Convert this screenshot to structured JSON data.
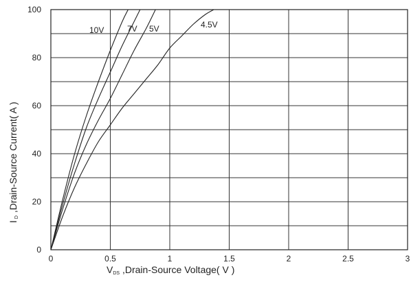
{
  "chart_data": {
    "type": "line",
    "xlabel_main": "V",
    "xlabel_sub": "DS",
    "xlabel_rest": " ,Drain-Source Voltage( V )",
    "ylabel_main": "I",
    "ylabel_sub": "D",
    "ylabel_rest": " ,Drain-Source Current( A )",
    "xlim": [
      0,
      3
    ],
    "ylim": [
      0,
      100
    ],
    "x_ticks": [
      0,
      0.5,
      1,
      1.5,
      2,
      2.5,
      3
    ],
    "x_tick_labels": [
      "0",
      "0.5",
      "1",
      "1.5",
      "2",
      "2.5",
      "3"
    ],
    "y_ticks": [
      0,
      20,
      40,
      60,
      80,
      100
    ],
    "y_tick_labels": [
      "0",
      "20",
      "40",
      "60",
      "80",
      "100"
    ],
    "grid": true,
    "series": [
      {
        "name": "10V",
        "x": [
          0,
          0.1,
          0.2,
          0.3,
          0.4,
          0.5,
          0.6,
          0.65
        ],
        "y": [
          0,
          21,
          40,
          56,
          70,
          83,
          95,
          100
        ]
      },
      {
        "name": "7V",
        "x": [
          0,
          0.1,
          0.2,
          0.3,
          0.4,
          0.5,
          0.6,
          0.7,
          0.75
        ],
        "y": [
          0,
          19,
          36,
          51,
          63,
          74,
          85,
          95,
          100
        ]
      },
      {
        "name": "5V",
        "x": [
          0,
          0.1,
          0.2,
          0.3,
          0.4,
          0.5,
          0.6,
          0.7,
          0.8,
          0.88
        ],
        "y": [
          0,
          17,
          32,
          44,
          54,
          63,
          73,
          83,
          92,
          100
        ]
      },
      {
        "name": "4.5V",
        "x": [
          0,
          0.1,
          0.2,
          0.3,
          0.4,
          0.5,
          0.6,
          0.7,
          0.8,
          0.9,
          1.0,
          1.1,
          1.2,
          1.3,
          1.37
        ],
        "y": [
          0,
          14,
          26,
          36,
          45,
          52,
          59,
          65,
          71,
          77,
          84,
          89,
          94,
          98,
          100
        ]
      }
    ]
  }
}
